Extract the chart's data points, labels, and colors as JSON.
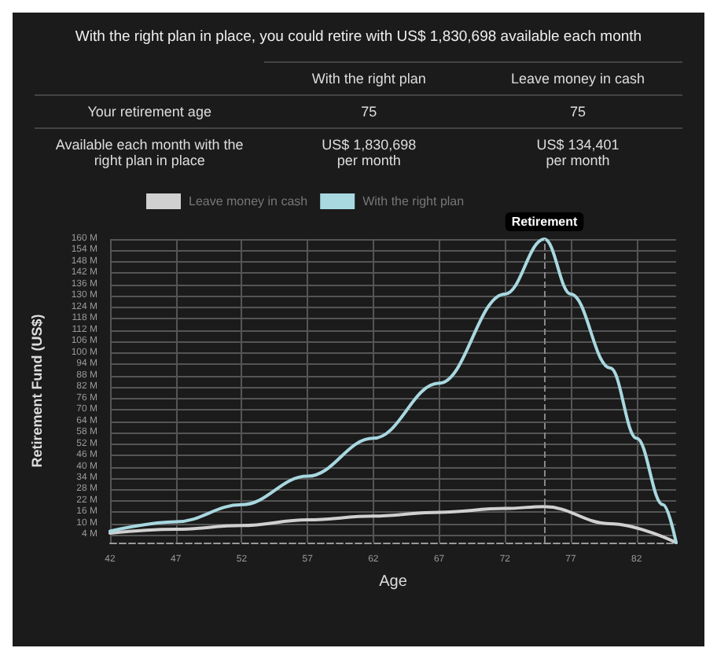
{
  "chart_data": [
    {
      "type": "other",
      "title": "With the right plan in place, you could retire with US$ 1,830,698 available each month",
      "annotations": [
        "With the right plan",
        "Leave money in cash",
        "Your retirement age",
        "75",
        "75",
        "Available each month with the right plan in place",
        "US$ 1,830,698\nper month",
        "US$ 134,401\nper month"
      ]
    },
    {
      "type": "line",
      "xlabel": "Age",
      "ylabel": "Retirement Fund (US$)",
      "legend": "top",
      "grid": true,
      "marker": "none",
      "line_style": "solid",
      "xlim": [
        42,
        85
      ],
      "xticks": [
        42,
        47,
        52,
        57,
        62,
        67,
        72,
        77,
        82
      ],
      "ylim": [
        0,
        160
      ],
      "yticks": [
        {
          "value": 4,
          "label": "4 M"
        },
        {
          "value": 10,
          "label": "10 M"
        },
        {
          "value": 16,
          "label": "16 M"
        },
        {
          "value": 22,
          "label": "22 M"
        },
        {
          "value": 28,
          "label": "28 M"
        },
        {
          "value": 34,
          "label": "34 M"
        },
        {
          "value": 40,
          "label": "40 M"
        },
        {
          "value": 46,
          "label": "46 M"
        },
        {
          "value": 52,
          "label": "52 M"
        },
        {
          "value": 58,
          "label": "58 M"
        },
        {
          "value": 64,
          "label": "64 M"
        },
        {
          "value": 70,
          "label": "70 M"
        },
        {
          "value": 76,
          "label": "76 M"
        },
        {
          "value": 82,
          "label": "82 M"
        },
        {
          "value": 88,
          "label": "88 M"
        },
        {
          "value": 94,
          "label": "94 M"
        },
        {
          "value": 100,
          "label": "100 M"
        },
        {
          "value": 106,
          "label": "106 M"
        },
        {
          "value": 112,
          "label": "112 M"
        },
        {
          "value": 118,
          "label": "118 M"
        },
        {
          "value": 124,
          "label": "124 M"
        },
        {
          "value": 130,
          "label": "130 M"
        },
        {
          "value": 136,
          "label": "136 M"
        },
        {
          "value": 142,
          "label": "142 M"
        },
        {
          "value": 148,
          "label": "148 M"
        },
        {
          "value": 154,
          "label": "154 M"
        },
        {
          "value": 160,
          "label": "160 M"
        }
      ],
      "ref_lines": [
        {
          "axis": "x",
          "value": 75,
          "label": "Retirement",
          "line_style": "dashed",
          "color": "#888888"
        }
      ],
      "series": [
        {
          "name": "Leave money in cash",
          "color": "#d0d0d0",
          "x": [
            42,
            47,
            52,
            57,
            62,
            67,
            72,
            75,
            80,
            85
          ],
          "values": [
            5,
            7,
            9,
            12,
            14,
            16,
            18,
            19,
            10,
            0
          ]
        },
        {
          "name": "With the right plan",
          "color": "#a8d8e0",
          "x": [
            42,
            47,
            52,
            57,
            62,
            67,
            72,
            75,
            77,
            80,
            82,
            84,
            85
          ],
          "values": [
            6,
            11,
            20,
            35,
            55,
            84,
            131,
            160,
            131,
            92,
            55,
            20,
            0
          ]
        }
      ]
    }
  ]
}
